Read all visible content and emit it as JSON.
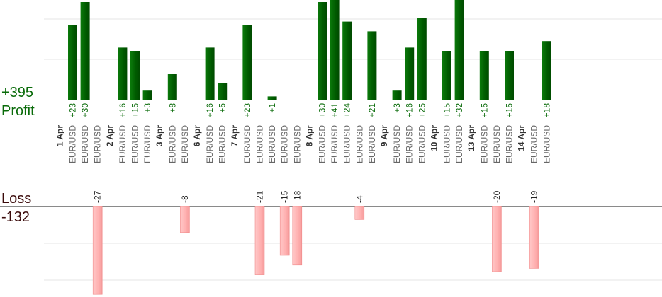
{
  "summary": {
    "profit_total": "+395",
    "profit_label": "Profit",
    "loss_label": "Loss",
    "loss_total": "-132"
  },
  "colors": {
    "profit_bar": "#006400",
    "loss_bar": "#ffb0b0",
    "profit_text": "#0a6b0a"
  },
  "chart_data": {
    "type": "bar",
    "title": "",
    "xlabel": "",
    "ylabel": "",
    "grid": true,
    "days": [
      {
        "date": "1 Apr",
        "trades": [
          {
            "pair": "EUR/USD",
            "value": 23
          },
          {
            "pair": "EUR/USD",
            "value": 30
          },
          {
            "pair": "EUR/USD",
            "value": -27
          }
        ]
      },
      {
        "date": "2 Apr",
        "trades": [
          {
            "pair": "EUR/USD",
            "value": 16
          },
          {
            "pair": "EUR/USD",
            "value": 15
          },
          {
            "pair": "EUR/USD",
            "value": 3
          }
        ]
      },
      {
        "date": "3 Apr",
        "trades": [
          {
            "pair": "EUR/USD",
            "value": 8
          },
          {
            "pair": "EUR/USD",
            "value": -8
          }
        ]
      },
      {
        "date": "6 Apr",
        "trades": [
          {
            "pair": "EUR/USD",
            "value": 16
          },
          {
            "pair": "EUR/USD",
            "value": 5
          }
        ]
      },
      {
        "date": "7 Apr",
        "trades": [
          {
            "pair": "EUR/USD",
            "value": 23
          },
          {
            "pair": "EUR/USD",
            "value": -21
          },
          {
            "pair": "EUR/USD",
            "value": 1
          },
          {
            "pair": "EUR/USD",
            "value": -15
          },
          {
            "pair": "EUR/USD",
            "value": -18
          }
        ]
      },
      {
        "date": "8 Apr",
        "trades": [
          {
            "pair": "EUR/USD",
            "value": 30
          },
          {
            "pair": "EUR/USD",
            "value": 41
          },
          {
            "pair": "EUR/USD",
            "value": 24
          },
          {
            "pair": "EUR/USD",
            "value": -4
          },
          {
            "pair": "EUR/USD",
            "value": 21
          }
        ]
      },
      {
        "date": "9 Apr",
        "trades": [
          {
            "pair": "EUR/USD",
            "value": 3
          },
          {
            "pair": "EUR/USD",
            "value": 16
          },
          {
            "pair": "EUR/USD",
            "value": 25
          }
        ]
      },
      {
        "date": "10 Apr",
        "trades": [
          {
            "pair": "EUR/USD",
            "value": 15
          },
          {
            "pair": "EUR/USD",
            "value": 32
          }
        ]
      },
      {
        "date": "13 Apr",
        "trades": [
          {
            "pair": "EUR/USD",
            "value": 15
          },
          {
            "pair": "EUR/USD",
            "value": -20
          },
          {
            "pair": "EUR/USD",
            "value": 15
          }
        ]
      },
      {
        "date": "14 Apr",
        "trades": [
          {
            "pair": "EUR/USD",
            "value": -19
          },
          {
            "pair": "EUR/USD",
            "value": 18
          }
        ]
      }
    ]
  }
}
